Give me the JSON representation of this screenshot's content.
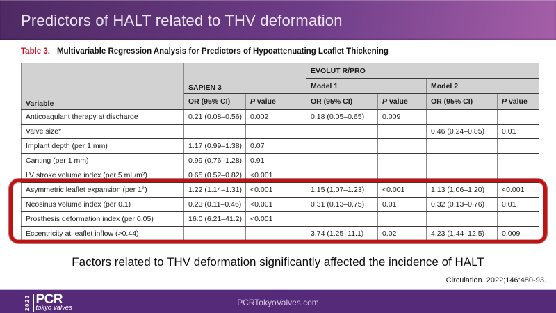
{
  "colors": {
    "header_grad_a": "#4e2a63",
    "header_grad_b": "#6d3c87",
    "header_grad_c": "#a55fa8",
    "accent_red": "#c01822",
    "highlight_red": "#c11212",
    "footer_bg": "#552a78",
    "table_header_bg": "#d2d2d2",
    "line_dark": "#3c3c3c",
    "line_light": "#8a8a8a"
  },
  "header": {
    "title": "Predictors of HALT related to THV deformation"
  },
  "table": {
    "caption_label": "Table 3.",
    "caption_text": "Multivariable Regression Analysis for Predictors of Hypoattenuating Leaflet Thickening",
    "group_headers": {
      "evolut": "EVOLUT R/PRO",
      "sapien": "SAPIEN 3",
      "model1": "Model 1",
      "model2": "Model 2"
    },
    "col_headers": {
      "variable": "Variable",
      "or": "OR (95% CI)",
      "p_prefix": "P",
      "p_suffix": " value"
    },
    "rows": [
      {
        "variable": "Anticoagulant therapy at discharge",
        "cells": [
          "0.21 (0.08–0.56)",
          "0.002",
          "0.18 (0.05–0.65)",
          "0.009",
          "",
          ""
        ],
        "highlight": false
      },
      {
        "variable": "Valve size*",
        "cells": [
          "",
          "",
          "",
          "",
          "0.46 (0.24–0.85)",
          "0.01"
        ],
        "highlight": false
      },
      {
        "variable": "Implant depth (per 1 mm)",
        "cells": [
          "1.17 (0.99–1.38)",
          "0.07",
          "",
          "",
          "",
          ""
        ],
        "highlight": false
      },
      {
        "variable": "Canting (per 1 mm)",
        "cells": [
          "0.99 (0.76–1.28)",
          "0.91",
          "",
          "",
          "",
          ""
        ],
        "highlight": false
      },
      {
        "variable": "LV stroke volume index (per 5 mL/m²)",
        "cells": [
          "0.65 (0.52–0.82)",
          "<0.001",
          "",
          "",
          "",
          ""
        ],
        "highlight": false
      },
      {
        "variable": "Asymmetric leaflet expansion (per 1°)",
        "cells": [
          "1.22 (1.14–1.31)",
          "<0.001",
          "1.15 (1.07–1.23)",
          "<0.001",
          "1.13 (1.06–1.20)",
          "<0.001"
        ],
        "highlight": true
      },
      {
        "variable": "Neosinus volume index (per 0.1)",
        "cells": [
          "0.23 (0.11–0.46)",
          "<0.001",
          "0.31 (0.13–0.75)",
          "0.01",
          "0.32 (0.13–0.76)",
          "0.01"
        ],
        "highlight": true
      },
      {
        "variable": "Prosthesis deformation index (per 0.05)",
        "cells": [
          "16.0 (6.21–41.2)",
          "<0.001",
          "",
          "",
          "",
          ""
        ],
        "highlight": true
      },
      {
        "variable": "Eccentricity at leaflet inflow (>0.44)",
        "cells": [
          "",
          "",
          "3.74 (1.25–11.1)",
          "0.02",
          "4.23 (1.44–12.5)",
          "0.009"
        ],
        "highlight": true
      }
    ]
  },
  "summary": "Factors related to THV deformation significantly affected the incidence of HALT",
  "citation": "Circulation. 2022;146:480-93.",
  "footer": {
    "url": "PCRTokyoValves.com",
    "logo": {
      "year": "2023",
      "brand": "PCR",
      "sub": "tokyo valves"
    }
  }
}
